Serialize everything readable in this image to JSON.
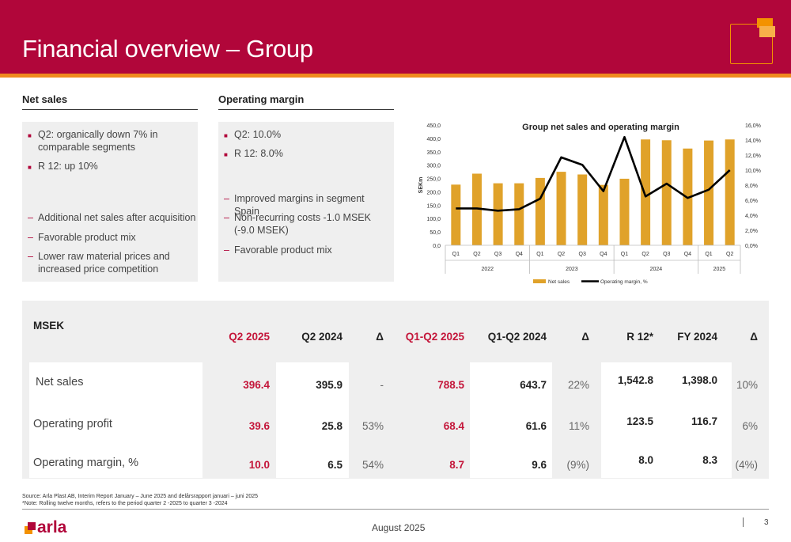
{
  "header": {
    "title": "Financial overview – Group"
  },
  "net_sales": {
    "heading": "Net sales",
    "bullets": [
      "Q2: organically down 7% in comparable segments",
      "R 12: up 10%"
    ],
    "dashes": [
      "Additional net sales after acquisition",
      "Favorable product mix",
      "Lower raw material prices and increased price competition"
    ]
  },
  "operating_margin": {
    "heading": "Operating margin",
    "bullets": [
      "Q2: 10.0%",
      "R 12: 8.0%"
    ],
    "dashes": [
      "Improved margins in segment Spain",
      "Non-recurring costs -1.0 MSEK (-9.0 MSEK)",
      "Favorable product mix"
    ]
  },
  "chart_data": {
    "type": "bar",
    "title": "Group net sales and operating margin",
    "ylabel": "SEKm",
    "categories": [
      "Q1",
      "Q2",
      "Q3",
      "Q4",
      "Q1",
      "Q2",
      "Q3",
      "Q4",
      "Q1",
      "Q2",
      "Q3",
      "Q4",
      "Q1",
      "Q2"
    ],
    "years": [
      {
        "label": "2022",
        "count": 4
      },
      {
        "label": "2023",
        "count": 4
      },
      {
        "label": "2024",
        "count": 4
      },
      {
        "label": "2025",
        "count": 2
      }
    ],
    "ylim": [
      0,
      450
    ],
    "y2lim": [
      0,
      16
    ],
    "yticks": [
      "0,0",
      "50,0",
      "100,0",
      "150,0",
      "200,0",
      "250,0",
      "300,0",
      "350,0",
      "400,0",
      "450,0"
    ],
    "y2ticks": [
      "0,0%",
      "2,0%",
      "4,0%",
      "6,0%",
      "8,0%",
      "10,0%",
      "12,0%",
      "14,0%",
      "16,0%"
    ],
    "series": [
      {
        "name": "Net sales",
        "kind": "bar",
        "color": "#e0a22a",
        "values": [
          227,
          268,
          232,
          232,
          252,
          275,
          265,
          226,
          249,
          396,
          393,
          362,
          392,
          396
        ]
      },
      {
        "name": "Operating margin, %",
        "kind": "line",
        "color": "#000000",
        "values": [
          4.9,
          4.9,
          4.6,
          4.8,
          6.2,
          11.7,
          10.7,
          7.2,
          14.4,
          6.5,
          8.2,
          6.3,
          7.4,
          10.0
        ]
      }
    ],
    "legend": "bottom",
    "grid": false
  },
  "table": {
    "unit_label": "MSEK",
    "headers": [
      "Q2 2025",
      "Q2 2024",
      "Δ",
      "Q1-Q2 2025",
      "Q1-Q2 2024",
      "Δ",
      "R 12*",
      "FY 2024",
      "Δ"
    ],
    "rows": [
      {
        "label": "Net sales",
        "cells": [
          "396.4",
          "395.9",
          "-",
          "788.5",
          "643.7",
          "22%",
          "1,542.8",
          "1,398.0",
          "10%"
        ]
      },
      {
        "label": "Operating profit",
        "cells": [
          "39.6",
          "25.8",
          "53%",
          "68.4",
          "61.6",
          "11%",
          "123.5",
          "116.7",
          "6%"
        ]
      },
      {
        "label": "Operating margin, %",
        "cells": [
          "10.0",
          "6.5",
          "54%",
          "8.7",
          "9.6",
          "(9%)",
          "8.0",
          "8.3",
          "(4%)"
        ]
      }
    ]
  },
  "footnotes": [
    "Source: Arla Plast AB, Interim Report January – June 2025 and delårsrapport januari – juni 2025",
    "*Note: Rolling twelve months, refers to the period quarter 2 -2025 to quarter 3 -2024"
  ],
  "footer": {
    "logo_text": "arla",
    "date": "August 2025",
    "page": "3"
  },
  "colors": {
    "brand_red": "#b1063a",
    "accent_orange": "#ef8a1e",
    "bar_gold": "#e0a22a",
    "highlight_red": "#c4163a"
  }
}
